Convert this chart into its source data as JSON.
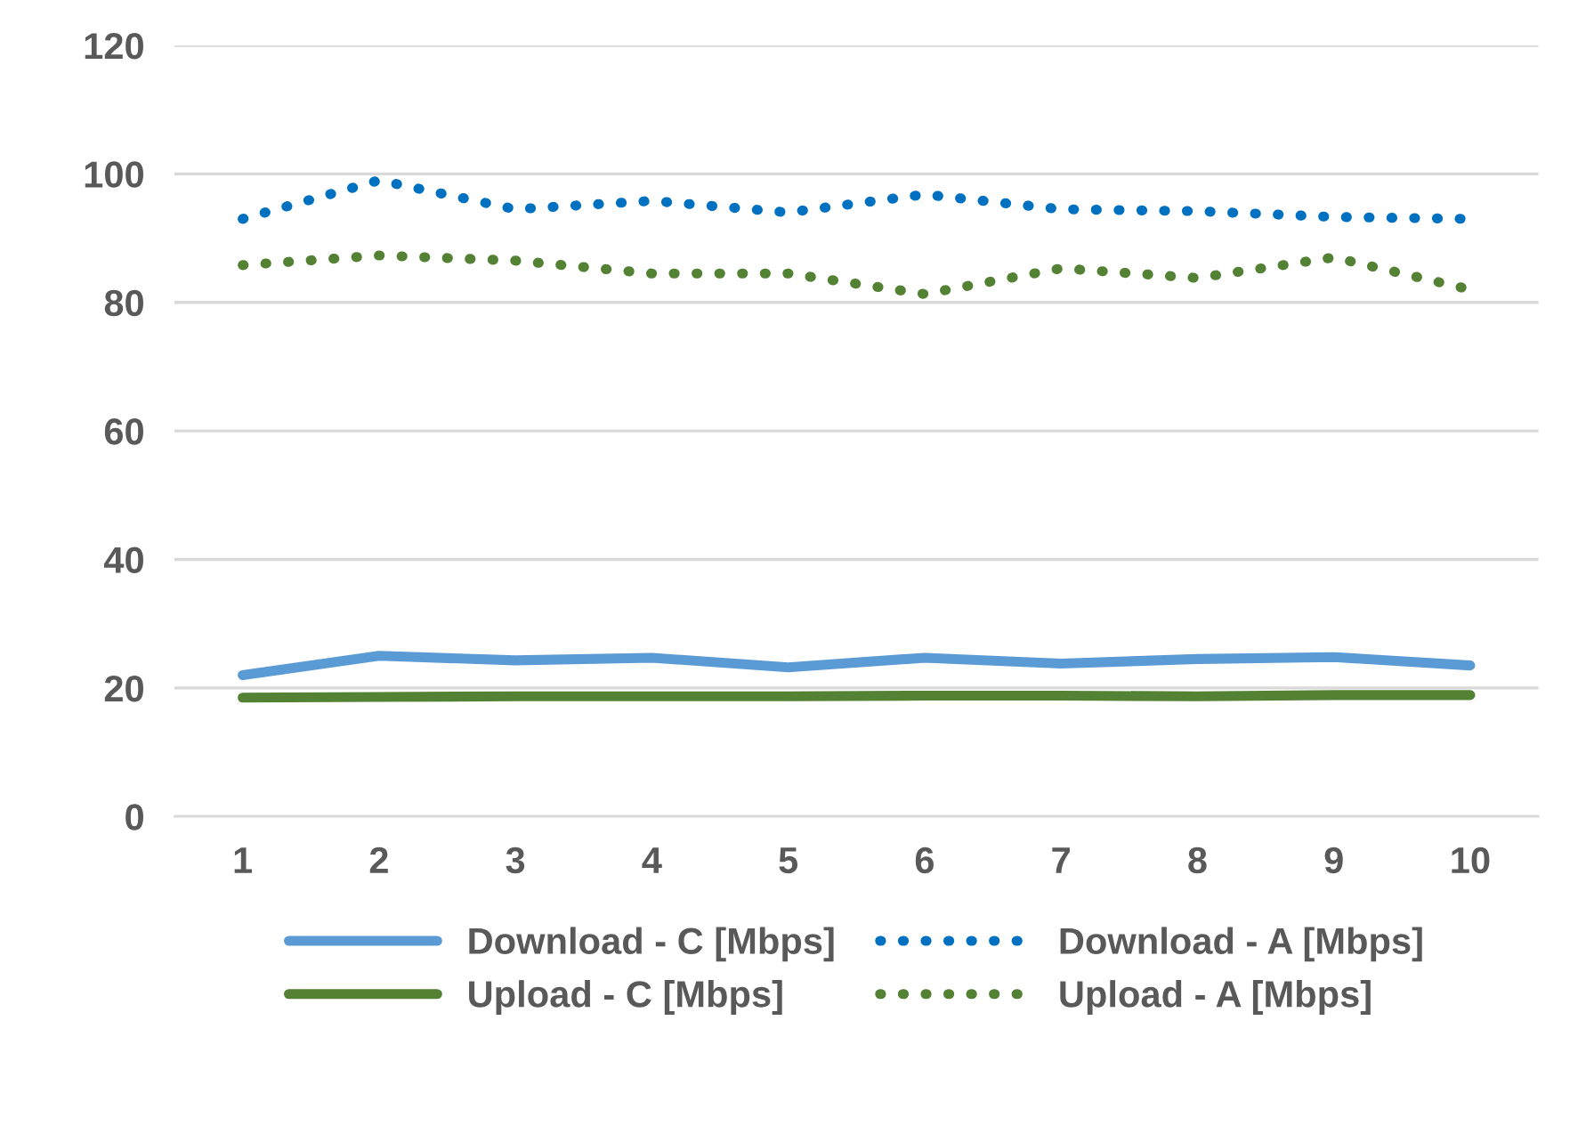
{
  "chart_data": {
    "type": "line",
    "categories": [
      "1",
      "2",
      "3",
      "4",
      "5",
      "6",
      "7",
      "8",
      "9",
      "10"
    ],
    "series": [
      {
        "name": "Download - C [Mbps]",
        "color": "#5b9bd5",
        "line_style": "solid",
        "values": [
          22,
          25,
          24.3,
          24.7,
          23.2,
          24.7,
          23.8,
          24.5,
          24.8,
          23.5
        ]
      },
      {
        "name": "Upload - C [Mbps]",
        "color": "#548235",
        "line_style": "solid",
        "values": [
          18.5,
          18.6,
          18.7,
          18.7,
          18.7,
          18.8,
          18.8,
          18.7,
          18.9,
          18.9
        ]
      },
      {
        "name": "Download - A [Mbps]",
        "color": "#0070c0",
        "line_style": "dotted",
        "values": [
          93,
          99,
          94.5,
          95.8,
          94,
          96.8,
          94.5,
          94.2,
          93.3,
          93
        ]
      },
      {
        "name": "Upload - A [Mbps]",
        "color": "#548235",
        "line_style": "dotted",
        "values": [
          85.8,
          87.3,
          86.5,
          84.5,
          84.5,
          81.3,
          85.3,
          83.8,
          87,
          82
        ]
      }
    ],
    "ylim": [
      0,
      120
    ],
    "yticks": [
      0,
      20,
      40,
      60,
      80,
      100,
      120
    ],
    "grid": "y",
    "legend": "bottom",
    "marker": "none"
  }
}
